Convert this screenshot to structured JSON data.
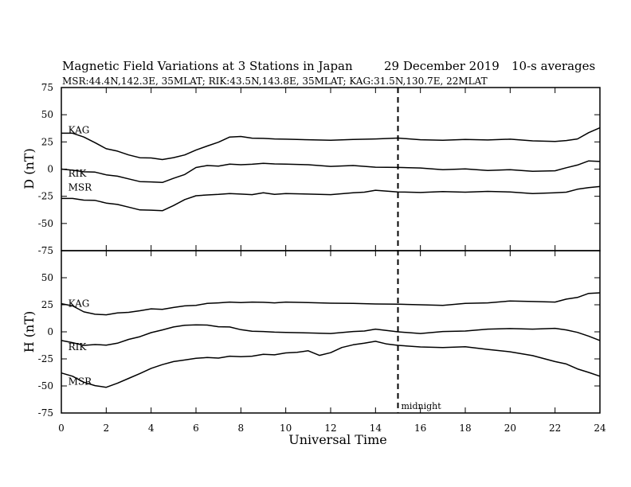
{
  "header": {
    "title": "Magnetic Field Variations at 3 Stations in Japan",
    "date": "29 December 2019",
    "averaging": "10-s averages",
    "stations_line": "MSR:44.4N,142.3E, 35MLAT;  RIK:43.5N,143.8E, 35MLAT;  KAG:31.5N,130.7E, 22MLAT"
  },
  "chart_data": [
    {
      "type": "line",
      "panel": "top",
      "ylabel": "D (nT)",
      "ylim": [
        -75,
        75
      ],
      "yticks": [
        75,
        50,
        25,
        0,
        -25,
        -50,
        -75
      ],
      "xlim": [
        0,
        24
      ],
      "grid": false,
      "series": [
        {
          "name": "KAG",
          "label_at": [
            0.2,
            36
          ],
          "x": [
            0,
            0.5,
            1,
            1.5,
            2,
            2.5,
            3,
            3.5,
            4,
            4.5,
            5,
            5.5,
            6,
            6.5,
            7,
            7.5,
            8,
            8.5,
            9,
            9.5,
            10,
            11,
            12,
            13,
            14,
            15,
            16,
            17,
            18,
            19,
            20,
            21,
            22,
            22.5,
            23,
            23.5,
            24
          ],
          "values": [
            33,
            33,
            30,
            24,
            19,
            16,
            13,
            11,
            10,
            9,
            10,
            13,
            18,
            21,
            25,
            29,
            30,
            29,
            28,
            28,
            27,
            27,
            27,
            27,
            28,
            28,
            27,
            27,
            27,
            27,
            27,
            26,
            26,
            26,
            28,
            33,
            38
          ]
        },
        {
          "name": "RIK",
          "label_at": [
            0.2,
            -4
          ],
          "x": [
            0,
            0.5,
            1,
            1.5,
            2,
            2.5,
            3,
            3.5,
            4,
            4.5,
            5,
            5.5,
            6,
            6.5,
            7,
            7.5,
            8,
            8.5,
            9,
            9.5,
            10,
            11,
            12,
            13,
            14,
            15,
            16,
            17,
            18,
            19,
            20,
            21,
            22,
            22.5,
            23,
            23.5,
            24
          ],
          "values": [
            0,
            -1,
            -2,
            -3,
            -5,
            -7,
            -9,
            -11,
            -12,
            -12,
            -9,
            -5,
            2,
            3,
            3,
            4,
            4,
            5,
            5,
            5,
            4,
            4,
            3,
            3,
            2,
            1,
            1,
            0,
            0,
            -1,
            -1,
            -2,
            -1,
            1,
            4,
            7,
            7
          ]
        },
        {
          "name": "MSR",
          "label_at": [
            0.2,
            -17
          ],
          "x": [
            0,
            0.5,
            1,
            1.5,
            2,
            2.5,
            3,
            3.5,
            4,
            4.5,
            5,
            5.5,
            6,
            6.5,
            7,
            7.5,
            8,
            8.5,
            9,
            9.5,
            10,
            11,
            12,
            13,
            13.5,
            14,
            15,
            16,
            17,
            18,
            19,
            20,
            21,
            22,
            22.5,
            23,
            23.5,
            24
          ],
          "values": [
            -27,
            -27,
            -28,
            -29,
            -31,
            -33,
            -35,
            -37,
            -38,
            -38,
            -34,
            -28,
            -24,
            -24,
            -23,
            -23,
            -23,
            -23,
            -22,
            -23,
            -23,
            -23,
            -23,
            -22,
            -21,
            -20,
            -21,
            -21,
            -21,
            -21,
            -21,
            -21,
            -22,
            -22,
            -21,
            -19,
            -17,
            -16
          ]
        }
      ]
    },
    {
      "type": "line",
      "panel": "bottom",
      "ylabel": "H (nT)",
      "xlabel": "Universal Time",
      "ylim": [
        -75,
        75
      ],
      "yticks": [
        50,
        25,
        0,
        -25,
        -50,
        -75
      ],
      "xlim": [
        0,
        24
      ],
      "xticks": [
        0,
        2,
        4,
        6,
        8,
        10,
        12,
        14,
        16,
        18,
        20,
        22,
        24
      ],
      "grid": false,
      "series": [
        {
          "name": "KAG",
          "label_at": [
            0.2,
            26
          ],
          "x": [
            0,
            0.5,
            1,
            1.5,
            2,
            2.5,
            3,
            3.5,
            4,
            4.5,
            5,
            5.5,
            6,
            6.5,
            7,
            7.5,
            8,
            8.5,
            9,
            9.5,
            10,
            11,
            12,
            13,
            14,
            15,
            16,
            17,
            18,
            19,
            20,
            21,
            22,
            22.5,
            23,
            23.5,
            24
          ],
          "values": [
            26,
            24,
            19,
            16,
            16,
            17,
            18,
            20,
            21,
            21,
            22,
            24,
            25,
            26,
            27,
            27,
            27,
            28,
            27,
            27,
            27,
            27,
            27,
            26,
            26,
            25,
            25,
            25,
            26,
            27,
            28,
            28,
            28,
            30,
            32,
            35,
            36
          ]
        },
        {
          "name": "RIK",
          "label_at": [
            0.2,
            -14
          ],
          "x": [
            0,
            0.5,
            1,
            1.5,
            2,
            2.5,
            3,
            3.5,
            4,
            4.5,
            5,
            5.5,
            6,
            6.5,
            7,
            7.5,
            8,
            8.5,
            9,
            9.5,
            10,
            11,
            12,
            13,
            13.5,
            14,
            15,
            16,
            17,
            18,
            19,
            20,
            21,
            22,
            22.5,
            23,
            23.5,
            24
          ],
          "values": [
            -8,
            -10,
            -12,
            -12,
            -12,
            -11,
            -7,
            -4,
            -1,
            2,
            4,
            6,
            7,
            6,
            5,
            4,
            2,
            1,
            0,
            0,
            -1,
            -1,
            -1,
            0,
            1,
            2,
            0,
            -1,
            0,
            1,
            2,
            3,
            3,
            3,
            2,
            -1,
            -4,
            -8
          ]
        },
        {
          "name": "MSR",
          "label_at": [
            0.2,
            -46
          ],
          "x": [
            0,
            0.5,
            1,
            1.5,
            2,
            2.5,
            3,
            3.5,
            4,
            4.5,
            5,
            5.5,
            6,
            6.5,
            7,
            7.5,
            8,
            8.5,
            9,
            9.5,
            10,
            10.5,
            11,
            11.5,
            12,
            12.5,
            13,
            13.5,
            14,
            14.5,
            15,
            16,
            17,
            18,
            19,
            20,
            21,
            22,
            22.5,
            23,
            23.5,
            24
          ],
          "values": [
            -38,
            -41,
            -46,
            -50,
            -51,
            -48,
            -43,
            -38,
            -34,
            -30,
            -28,
            -26,
            -24,
            -24,
            -24,
            -23,
            -23,
            -22,
            -21,
            -21,
            -20,
            -19,
            -17,
            -22,
            -19,
            -15,
            -12,
            -10,
            -9,
            -11,
            -13,
            -14,
            -14,
            -14,
            -16,
            -19,
            -22,
            -27,
            -30,
            -34,
            -38,
            -41
          ]
        }
      ]
    }
  ],
  "annotations": {
    "midnight_label": "midnight",
    "midnight_ut": 15
  }
}
